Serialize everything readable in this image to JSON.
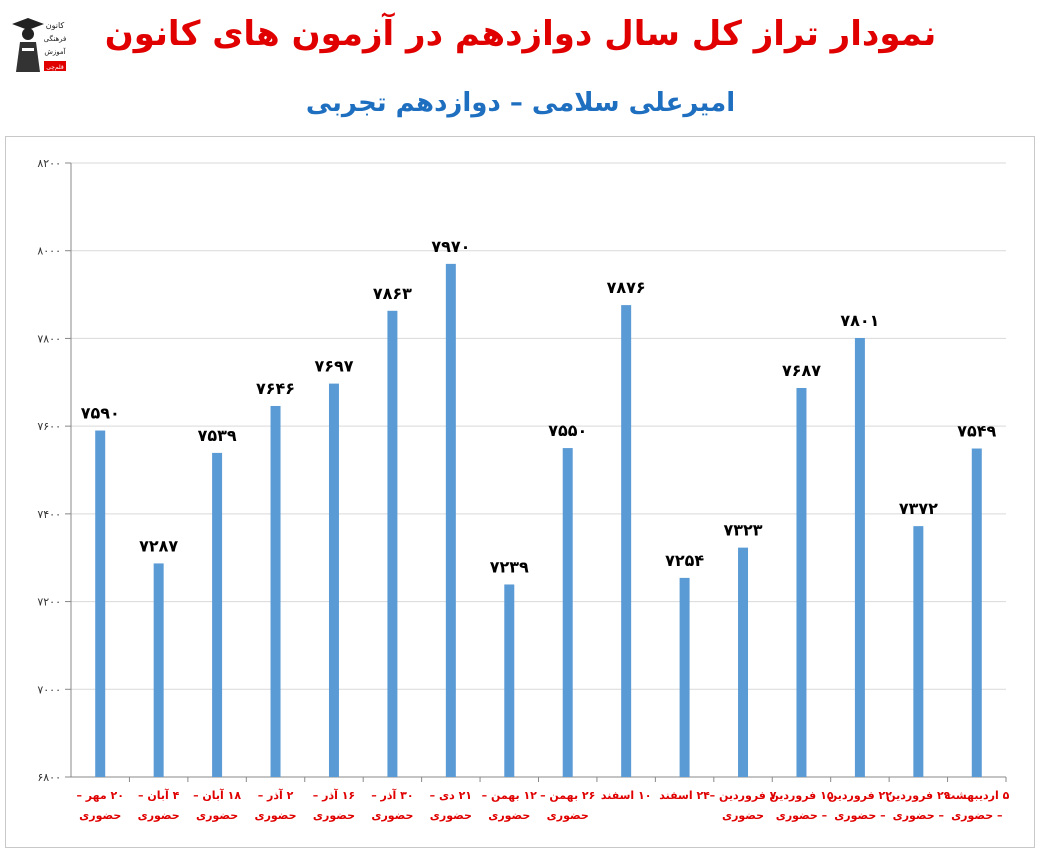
{
  "header": {
    "title": "نمودار تراز کل سال دوازدهم در آزمون های کانون",
    "subtitle": "امیرعلی سلامی – دوازدهم تجربی"
  },
  "logo": {
    "icon": "graduate-figure-icon",
    "lines": [
      "کانون",
      "فرهنگی",
      "آموزش",
      "قلم‌چی"
    ]
  },
  "colors": {
    "title": "#e00000",
    "subtitle": "#1f6fc0",
    "bar": "#5b9bd5",
    "category_label": "#e00000",
    "value_label": "#000000",
    "grid": "#d9d9d9"
  },
  "chart_data": {
    "type": "bar",
    "ylim": [
      6800,
      8200
    ],
    "yticks": [
      6800,
      7000,
      7200,
      7400,
      7600,
      7800,
      8000,
      8200
    ],
    "ytick_labels": [
      "۶۸۰۰",
      "۷۰۰۰",
      "۷۲۰۰",
      "۷۴۰۰",
      "۷۶۰۰",
      "۷۸۰۰",
      "۸۰۰۰",
      "۸۲۰۰"
    ],
    "grid": true,
    "legend": "none",
    "categories": [
      [
        "۲۰ مهر –",
        "حضوری"
      ],
      [
        "۴ آبان –",
        "حضوری"
      ],
      [
        "۱۸ آبان –",
        "حضوری"
      ],
      [
        "۲ آذر –",
        "حضوری"
      ],
      [
        "۱۶ آذر –",
        "حضوری"
      ],
      [
        "۳۰ آذر –",
        "حضوری"
      ],
      [
        "۲۱ دی –",
        "حضوری"
      ],
      [
        "۱۲ بهمن –",
        "حضوری"
      ],
      [
        "۲۶ بهمن –",
        "حضوری"
      ],
      [
        "۱۰ اسفند",
        ""
      ],
      [
        "۲۴ اسفند",
        ""
      ],
      [
        "۷ فروردین –",
        "حضوری"
      ],
      [
        "۱۵ فروردین",
        "– حضوری"
      ],
      [
        "۲۲ فروردین",
        "– حضوری"
      ],
      [
        "۲۹ فروردین",
        "– حضوری"
      ],
      [
        "۵ اردیبهشت",
        "– حضوری"
      ]
    ],
    "values": [
      7590,
      7287,
      7539,
      7646,
      7697,
      7863,
      7970,
      7239,
      7550,
      7876,
      7254,
      7323,
      7687,
      7801,
      7372,
      7549
    ],
    "value_labels": [
      "۷۵۹۰",
      "۷۲۸۷",
      "۷۵۳۹",
      "۷۶۴۶",
      "۷۶۹۷",
      "۷۸۶۳",
      "۷۹۷۰",
      "۷۲۳۹",
      "۷۵۵۰",
      "۷۸۷۶",
      "۷۲۵۴",
      "۷۳۲۳",
      "۷۶۸۷",
      "۷۸۰۱",
      "۷۳۷۲",
      "۷۵۴۹"
    ]
  }
}
